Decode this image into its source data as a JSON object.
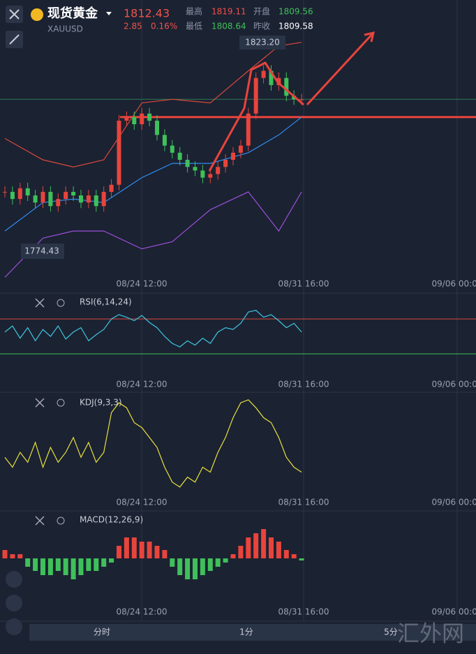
{
  "header": {
    "name": "现货黄金",
    "symbol": "XAUUSD",
    "price": "1812.43",
    "change": "2.85",
    "change_pct": "0.16%",
    "high_label": "最高",
    "high": "1819.11",
    "open_label": "开盘",
    "open": "1809.56",
    "low_label": "最低",
    "low": "1808.64",
    "prev_label": "昨收",
    "prev": "1809.58"
  },
  "time_labels": [
    "08/24 12:00",
    "08/31 16:00",
    "09/06 00:00"
  ],
  "price_panel": {
    "ylim": [
      1760,
      1835
    ],
    "max_label": "1823.20",
    "min_label": "1774.43",
    "level": 1807,
    "closes": [
      1786,
      1784,
      1787,
      1785,
      1783,
      1786,
      1782,
      1784,
      1786,
      1785,
      1783,
      1785,
      1782,
      1786,
      1788,
      1806,
      1807,
      1805,
      1808,
      1806,
      1802,
      1799,
      1797,
      1795,
      1793,
      1792,
      1790,
      1791,
      1793,
      1795,
      1797,
      1799,
      1808,
      1818,
      1820,
      1816,
      1818,
      1813,
      1812,
      1812
    ],
    "line_x": [
      0,
      5,
      9,
      13,
      18,
      22,
      27,
      32,
      36,
      39
    ],
    "ma": [
      1775,
      1783,
      1784,
      1783,
      1790,
      1794,
      1794,
      1797,
      1802,
      1807
    ],
    "upper": [
      1801,
      1795,
      1793,
      1795,
      1811,
      1812,
      1811,
      1820,
      1827,
      1828
    ],
    "lower": [
      1762,
      1773,
      1775,
      1775,
      1770,
      1772,
      1781,
      1786,
      1775,
      1786
    ]
  },
  "rsi": {
    "label": "RSI(6,14,24)",
    "ylim": [
      0,
      100
    ],
    "levels": [
      70,
      30
    ],
    "values": [
      55,
      62,
      48,
      60,
      45,
      58,
      50,
      62,
      47,
      55,
      60,
      45,
      52,
      58,
      70,
      75,
      72,
      68,
      74,
      66,
      60,
      50,
      42,
      38,
      45,
      40,
      48,
      42,
      55,
      60,
      58,
      65,
      78,
      80,
      72,
      75,
      68,
      60,
      65,
      55
    ]
  },
  "kdj": {
    "label": "KDJ(9,3,3)",
    "ylim": [
      0,
      100
    ],
    "values": [
      40,
      30,
      45,
      35,
      55,
      30,
      50,
      35,
      45,
      60,
      40,
      55,
      35,
      45,
      85,
      95,
      90,
      75,
      70,
      60,
      50,
      30,
      15,
      10,
      20,
      15,
      30,
      25,
      45,
      60,
      80,
      95,
      98,
      90,
      80,
      75,
      60,
      40,
      30,
      25
    ]
  },
  "macd": {
    "label": "MACD(12,26,9)",
    "ylim": [
      -8,
      8
    ],
    "values": [
      2,
      1,
      1,
      -2,
      -3,
      -4,
      -4,
      -3,
      -4,
      -5,
      -4,
      -3,
      -3,
      -2,
      -1,
      3,
      5,
      5,
      4,
      4,
      3,
      2,
      -2,
      -4,
      -5,
      -5,
      -4,
      -3,
      -2,
      -1,
      1,
      3,
      5,
      6,
      7,
      5,
      4,
      2,
      1,
      -0.5
    ]
  },
  "tabs": [
    "分时",
    "1分",
    "5分"
  ],
  "watermark": "汇外网"
}
